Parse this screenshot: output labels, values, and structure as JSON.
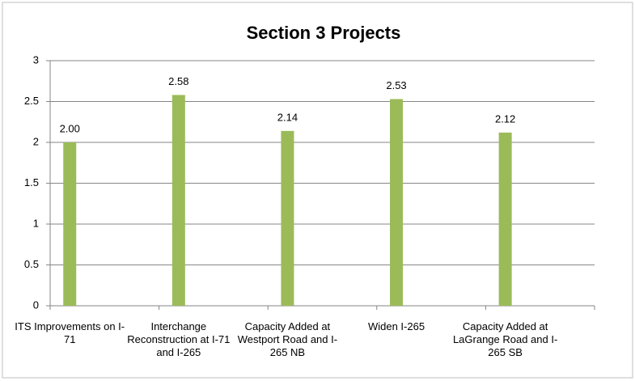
{
  "chart_data": {
    "type": "bar",
    "title": "Section 3 Projects",
    "categories": [
      "ITS Improvements on I-71",
      "Interchange Reconstruction at I-71 and I-265",
      "Capacity Added at Westport Road and I-265 NB",
      "Widen I-265",
      "Capacity Added at LaGrange Road and I-265 SB"
    ],
    "values": [
      2.0,
      2.58,
      2.14,
      2.53,
      2.12
    ],
    "value_labels": [
      "2.00",
      "2.58",
      "2.14",
      "2.53",
      "2.12"
    ],
    "color": "#9bbb59",
    "ylim": [
      0,
      3
    ],
    "yticks": [
      0,
      0.5,
      1,
      1.5,
      2,
      2.5,
      3
    ],
    "grid": true
  }
}
